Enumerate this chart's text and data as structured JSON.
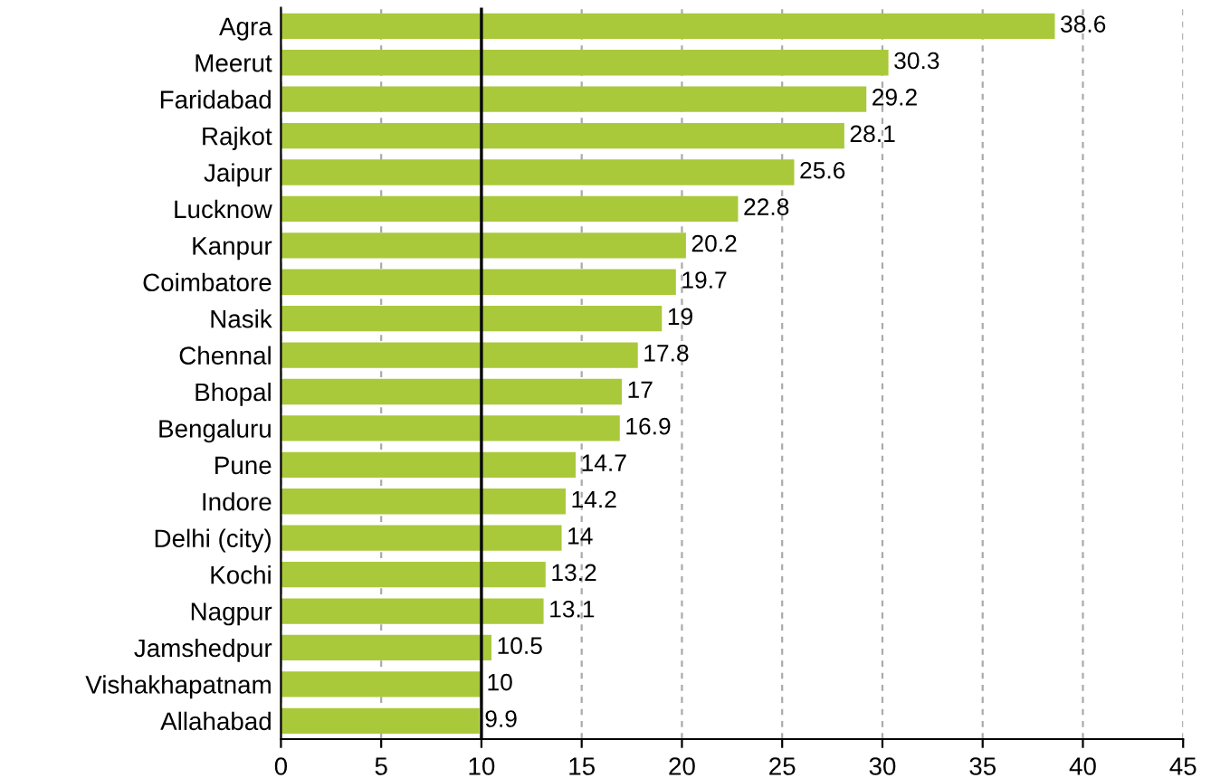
{
  "chart_data": {
    "type": "bar",
    "orientation": "horizontal",
    "categories": [
      "Agra",
      "Meerut",
      "Faridabad",
      "Rajkot",
      "Jaipur",
      "Lucknow",
      "Kanpur",
      "Coimbatore",
      "Nasik",
      "Chennal",
      "Bhopal",
      "Bengaluru",
      "Pune",
      "Indore",
      "Delhi (city)",
      "Kochi",
      "Nagpur",
      "Jamshedpur",
      "Vishakhapatnam",
      "Allahabad"
    ],
    "values": [
      38.6,
      30.3,
      29.2,
      28.1,
      25.6,
      22.8,
      20.2,
      19.7,
      19,
      17.8,
      17,
      16.9,
      14.7,
      14.2,
      14,
      13.2,
      13.1,
      10.5,
      10,
      9.9
    ],
    "color": "#a9c93a",
    "data_labels": true,
    "xlim": [
      0,
      45
    ],
    "xticks": [
      0,
      5,
      10,
      15,
      20,
      25,
      30,
      35,
      40,
      45
    ],
    "grid": "x",
    "ref_lines": [
      {
        "axis": "x",
        "value": 10,
        "color": "#000000"
      }
    ]
  }
}
